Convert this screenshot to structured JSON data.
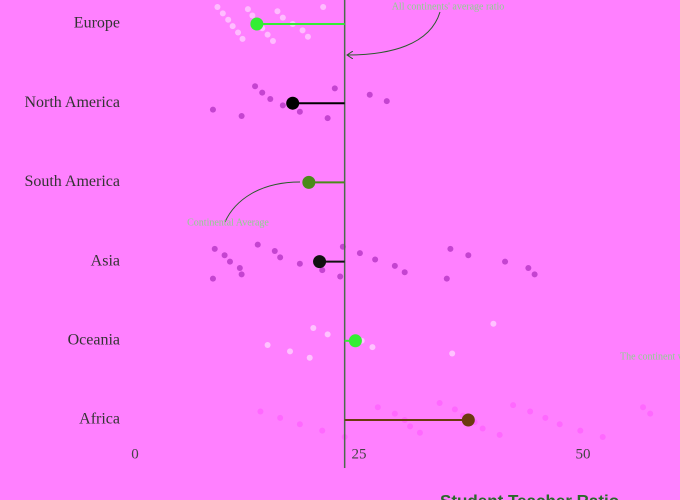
{
  "chart_data": {
    "type": "dot",
    "xlabel": "Student Teacher Ratio",
    "categories": [
      "Europe",
      "North America",
      "South America",
      "Asia",
      "Oceania",
      "Africa"
    ],
    "means": [
      13.6,
      17.6,
      19.4,
      20.6,
      24.6,
      37.2
    ],
    "mean_colors": [
      "#33ee33",
      "#000000",
      "#4a8a1a",
      "#111111",
      "#33ee33",
      "#6b3a10"
    ],
    "point_colors": [
      "#ffd0ff",
      "#b030c0",
      "#b030c0",
      "#b030c0",
      "#ffd8ff",
      "#ff60ff"
    ],
    "points": [
      [
        9.2,
        9.8,
        10.4,
        10.9,
        11.5,
        12.0,
        12.6,
        13.1,
        13.7,
        14.2,
        14.8,
        15.4,
        15.9,
        16.5,
        17.6,
        18.7,
        19.3,
        21.0
      ],
      [
        8.7,
        11.9,
        13.4,
        14.2,
        15.1,
        16.5,
        18.4,
        21.5,
        22.3,
        26.2,
        28.1
      ],
      [],
      [
        8.7,
        8.9,
        10.0,
        10.6,
        11.7,
        11.9,
        13.7,
        15.6,
        16.2,
        18.4,
        20.9,
        22.9,
        23.2,
        25.1,
        26.8,
        29.0,
        30.1,
        34.8,
        35.2,
        37.2,
        41.3,
        43.9,
        44.6
      ],
      [
        14.8,
        17.3,
        19.5,
        19.9,
        21.5,
        25.3,
        26.5,
        35.4,
        40.0
      ],
      [
        14.0,
        16.2,
        18.4,
        20.9,
        23.4,
        27.1,
        29.0,
        30.1,
        30.7,
        31.8,
        34.0,
        35.7,
        36.6,
        37.9,
        38.8,
        40.7,
        42.2,
        44.1,
        45.8,
        47.4,
        49.7,
        52.2,
        56.7,
        57.5
      ]
    ],
    "reference_value": 23.4,
    "reference_color": "#4a6a4a",
    "xlim": [
      0,
      60
    ],
    "xticks": [
      0,
      25,
      50
    ],
    "annotations": [
      "All continents' average ratio",
      "Continental Average",
      "The continent with the highest ratio"
    ]
  }
}
